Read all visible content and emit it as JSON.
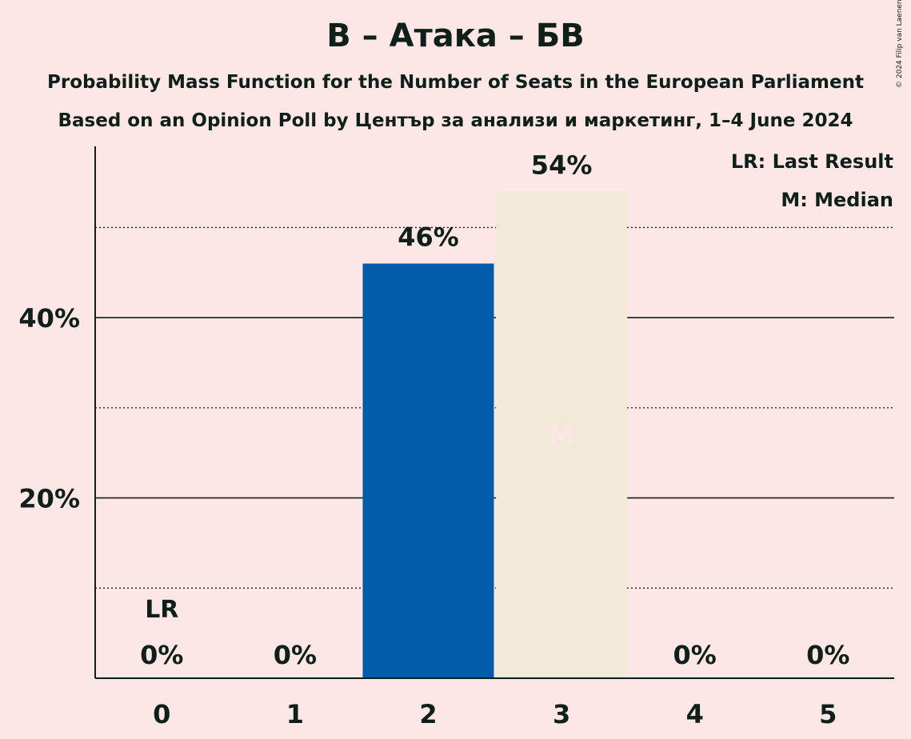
{
  "chart_data": {
    "type": "bar",
    "title": "В – Атака – БВ",
    "subtitle": "Probability Mass Function for the Number of Seats in the European Parliament",
    "subtitle2": "Based on an Opinion Poll by Център за анализи и маркетинг, 1–4 June 2024",
    "copyright": "© 2024 Filip van Laenen",
    "xlabel": "",
    "ylabel": "",
    "categories": [
      "0",
      "1",
      "2",
      "3",
      "4",
      "5"
    ],
    "values": [
      0,
      0,
      46,
      54,
      0,
      0
    ],
    "value_labels": [
      "0%",
      "0%",
      "46%",
      "54%",
      "0%",
      "0%"
    ],
    "ylim": [
      0,
      59
    ],
    "y_ticks": [
      {
        "value": 20,
        "label": "20%"
      },
      {
        "value": 40,
        "label": "40%"
      }
    ],
    "minor_gridlines": [
      10,
      30,
      50
    ],
    "grid": true,
    "last_result": {
      "index": 0,
      "label": "LR"
    },
    "median": {
      "index": 3,
      "label": "M"
    },
    "legend": {
      "placement": "top-right",
      "items": [
        "LR: Last Result",
        "M: Median"
      ]
    },
    "colors": {
      "background": "#FDE6E6",
      "bar_primary": "#035BAB",
      "bar_median": "#F2E9D9",
      "median_marker": "#FDE6E6",
      "text": "#0F1F1A"
    }
  }
}
